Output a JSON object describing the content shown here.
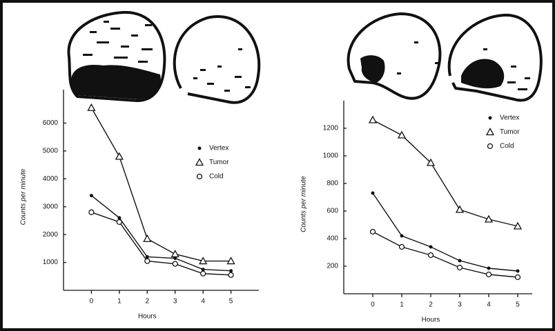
{
  "chart_data": [
    {
      "type": "line",
      "x_label": "Hours",
      "y_label": "Counts per minute",
      "x": [
        0,
        1,
        2,
        3,
        4,
        5
      ],
      "xlim": [
        -1,
        6
      ],
      "xticks": [
        0,
        1,
        2,
        3,
        4,
        5
      ],
      "ylim": [
        0,
        7200
      ],
      "yticks": [
        1000,
        2000,
        3000,
        4000,
        5000,
        6000
      ],
      "series": [
        {
          "name": "Vertex",
          "color": "#111111",
          "marker": "dot",
          "values": [
            3400,
            2600,
            1200,
            1150,
            750,
            700
          ]
        },
        {
          "name": "Tumor",
          "color": "#111111",
          "marker": "triangle",
          "values": [
            6550,
            4800,
            1850,
            1300,
            1050,
            1050
          ]
        },
        {
          "name": "Cold",
          "color": "#111111",
          "marker": "circle",
          "values": [
            2800,
            2450,
            1050,
            950,
            600,
            550
          ]
        }
      ]
    },
    {
      "type": "line",
      "x_label": "Hours",
      "y_label": "Counts per minute",
      "x": [
        0,
        1,
        2,
        3,
        4,
        5
      ],
      "xlim": [
        -1,
        5.5
      ],
      "xticks": [
        0,
        1,
        2,
        3,
        4,
        5
      ],
      "ylim": [
        0,
        1400
      ],
      "yticks": [
        200,
        400,
        600,
        800,
        1000,
        1200
      ],
      "series": [
        {
          "name": "Vertex",
          "color": "#111111",
          "marker": "dot",
          "values": [
            730,
            420,
            340,
            240,
            185,
            165
          ]
        },
        {
          "name": "Tumor",
          "color": "#111111",
          "marker": "triangle",
          "values": [
            1260,
            1150,
            950,
            610,
            540,
            490
          ]
        },
        {
          "name": "Cold",
          "color": "#111111",
          "marker": "circle",
          "values": [
            450,
            340,
            280,
            190,
            140,
            120
          ]
        }
      ]
    }
  ]
}
